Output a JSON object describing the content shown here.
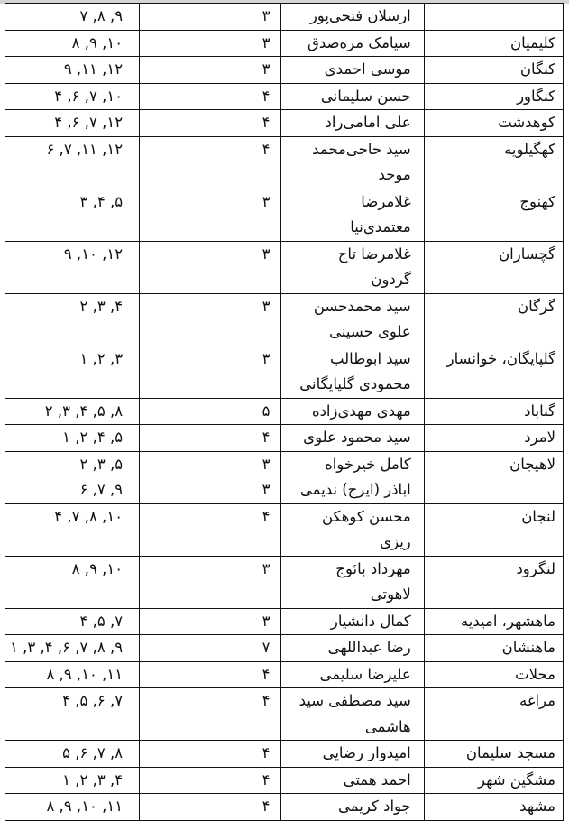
{
  "rows": [
    {
      "city": "",
      "name": [
        "ارسلان فتحی‌پور"
      ],
      "count": [
        "۳"
      ],
      "list": [
        "۹, ۸, ۷"
      ]
    },
    {
      "city": "کلیمیان",
      "name": [
        "سیامک مره‌صدق"
      ],
      "count": [
        "۳"
      ],
      "list": [
        "۱۰, ۹, ۸"
      ]
    },
    {
      "city": "کنگان",
      "name": [
        "موسی احمدی"
      ],
      "count": [
        "۳"
      ],
      "list": [
        "۱۲, ۱۱, ۹"
      ]
    },
    {
      "city": "کنگاور",
      "name": [
        "حسن سلیمانی"
      ],
      "count": [
        "۴"
      ],
      "list": [
        "۱۰, ۷, ۶, ۴"
      ]
    },
    {
      "city": "کوهدشت",
      "name": [
        "علی امامی‌راد"
      ],
      "count": [
        "۴"
      ],
      "list": [
        "۱۲, ۷, ۶, ۴"
      ]
    },
    {
      "city": "کهگیلویه",
      "name": [
        "سید حاجی‌محمد",
        "موحد"
      ],
      "count": [
        "۴"
      ],
      "list": [
        "۱۲, ۱۱, ۷, ۶"
      ]
    },
    {
      "city": "کهنوج",
      "name": [
        "غلامرضا",
        "معتمدی‌نیا"
      ],
      "count": [
        "۳"
      ],
      "list": [
        "۵, ۴, ۳"
      ]
    },
    {
      "city": "گچساران",
      "name": [
        "غلامرضا تاج گردون"
      ],
      "count": [
        "۳"
      ],
      "list": [
        "۱۲, ۱۰, ۹"
      ]
    },
    {
      "city": "گرگان",
      "name": [
        "سید محمدحسن",
        "علوی حسینی"
      ],
      "count": [
        "۳"
      ],
      "list": [
        "۴, ۳, ۲"
      ]
    },
    {
      "city": "گلپایگان، خوانسار",
      "name": [
        "سید ابوطالب",
        "محمودی گلپایگانی"
      ],
      "count": [
        "۳"
      ],
      "list": [
        "۳, ۲, ۱"
      ]
    },
    {
      "city": "گناباد",
      "name": [
        "مهدی مهدی‌زاده"
      ],
      "count": [
        "۵"
      ],
      "list": [
        "۸, ۵, ۴, ۳, ۲"
      ]
    },
    {
      "city": "لامرد",
      "name": [
        "سید محمود علوی"
      ],
      "count": [
        "۴"
      ],
      "list": [
        "۵, ۴, ۲, ۱"
      ]
    },
    {
      "city": "لاهیجان",
      "name": [
        "کامل خیرخواه",
        "اباذر (ایرج) ندیمی"
      ],
      "count": [
        "۳",
        "۳"
      ],
      "list": [
        "۵, ۳, ۲",
        "۹, ۷, ۶"
      ]
    },
    {
      "city": "لنجان",
      "name": [
        "محسن کوهکن",
        "ریزی"
      ],
      "count": [
        "۴"
      ],
      "list": [
        "۱۰, ۸, ۷, ۴"
      ]
    },
    {
      "city": "لنگرود",
      "name": [
        "مهرداد بائوج",
        "لاهوتی"
      ],
      "count": [
        "۳"
      ],
      "list": [
        "۱۰, ۹, ۸"
      ]
    },
    {
      "city": "ماهشهر، امیدیه",
      "name": [
        "کمال دانشیار"
      ],
      "count": [
        "۳"
      ],
      "list": [
        "۷, ۵, ۴"
      ]
    },
    {
      "city": "ماهنشان",
      "name": [
        "رضا عبداللهی"
      ],
      "count": [
        "۷"
      ],
      "list": [
        "۹, ۸, ۷, ۶, ۴, ۳, ۱"
      ]
    },
    {
      "city": "محلات",
      "name": [
        "علیرضا سلیمی"
      ],
      "count": [
        "۴"
      ],
      "list": [
        "۱۱, ۱۰, ۹, ۸"
      ]
    },
    {
      "city": "مراغه",
      "name": [
        "سید مصطفی سید",
        "هاشمی"
      ],
      "count": [
        "۴"
      ],
      "list": [
        "۷, ۶, ۵, ۴"
      ]
    },
    {
      "city": "مسجد سلیمان",
      "name": [
        "امیدوار رضایی"
      ],
      "count": [
        "۴"
      ],
      "list": [
        "۸, ۷, ۶, ۵"
      ]
    },
    {
      "city": "مشگین شهر",
      "name": [
        "احمد همتی"
      ],
      "count": [
        "۴"
      ],
      "list": [
        "۴, ۳, ۲, ۱"
      ]
    },
    {
      "city": "مشهد",
      "name": [
        "جواد کریمی"
      ],
      "count": [
        "۴"
      ],
      "list": [
        "۱۱, ۱۰, ۹, ۸"
      ]
    }
  ]
}
